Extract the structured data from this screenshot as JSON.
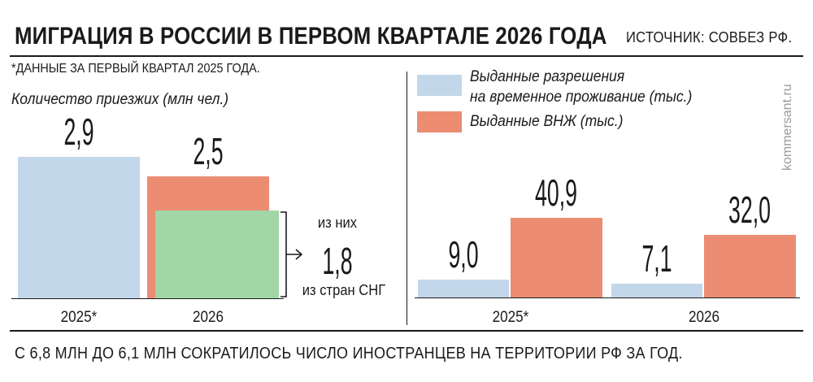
{
  "header": {
    "title": "МИГРАЦИЯ В РОССИИ В ПЕРВОМ КВАРТАЛЕ 2026 ГОДА",
    "source": "ИСТОЧНИК: СОВБЕЗ РФ."
  },
  "note": "*ДАННЫЕ ЗА ПЕРВЫЙ КВАРТАЛ 2025 ГОДА.",
  "watermark": "kommersant.ru",
  "footer": "С 6,8 МЛН ДО 6,1 МЛН СОКРАТИЛОСЬ ЧИСЛО ИНОСТРАНЦЕВ НА ТЕРРИТОРИИ РФ ЗА ГОД.",
  "colors": {
    "blue": "#c3d7ea",
    "red": "#eb8c73",
    "green": "#a2d6a6",
    "ink": "#1a1a1a"
  },
  "chart_data": [
    {
      "type": "bar",
      "title": "Количество приезжих (млн чел.)",
      "categories": [
        "2025*",
        "2026"
      ],
      "values": [
        2.9,
        2.5
      ],
      "value_labels": [
        "2,9",
        "2,5"
      ],
      "bar_colors": [
        "#c3d7ea",
        "#eb8c73"
      ],
      "sub_value": {
        "category": "2026",
        "value": 1.8,
        "value_label": "1,8",
        "label_top": "из них",
        "label_bottom": "из стран СНГ",
        "color": "#a2d6a6"
      },
      "ylim": [
        0,
        2.9
      ],
      "grid": false
    },
    {
      "type": "bar",
      "categories": [
        "2025*",
        "2026"
      ],
      "series": [
        {
          "name": "Выданные разрешения на временное проживание (тыс.)",
          "name_lines": [
            "Выданные разрешения",
            "на временное проживание (тыс.)"
          ],
          "values": [
            9.0,
            7.1
          ],
          "value_labels": [
            "9,0",
            "7,1"
          ],
          "color": "#c3d7ea"
        },
        {
          "name": "Выданные ВНЖ (тыс.)",
          "values": [
            40.9,
            32.0
          ],
          "value_labels": [
            "40,9",
            "32,0"
          ],
          "color": "#eb8c73"
        }
      ],
      "ylim": [
        0,
        40.9
      ],
      "legend": "top",
      "grid": false
    }
  ]
}
